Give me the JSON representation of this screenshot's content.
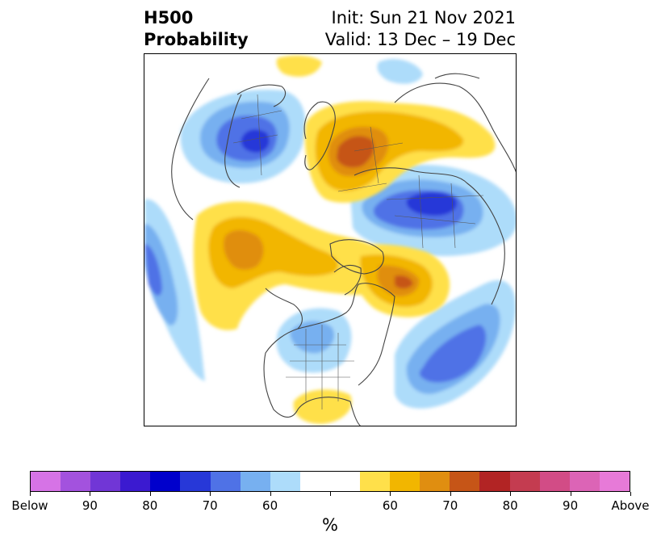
{
  "title": {
    "left_line1": "H500",
    "left_line2": "Probability",
    "right_line1": "Init: Sun 21 Nov 2021",
    "right_line2": "Valid: 13 Dec – 19 Dec"
  },
  "colorbar": {
    "colors": [
      "#d673e6",
      "#a352de",
      "#7136d6",
      "#3b1ad0",
      "#0000cc",
      "#2738d8",
      "#4f72e6",
      "#77b0f0",
      "#addcfa",
      "#ffffff",
      "#ffffff",
      "#ffe04a",
      "#f2b600",
      "#e08e10",
      "#c65517",
      "#b22424",
      "#c43c50",
      "#d24c86",
      "#dc64b6",
      "#e77ad8"
    ],
    "labels": [
      "Below",
      "90",
      "80",
      "70",
      "60",
      "60",
      "70",
      "80",
      "90",
      "Above"
    ],
    "unit": "%"
  }
}
